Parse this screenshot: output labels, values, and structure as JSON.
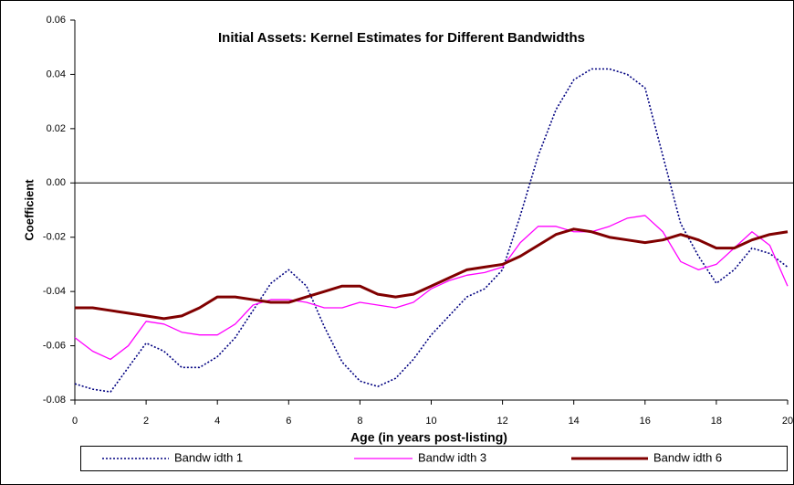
{
  "chart_data": {
    "type": "line",
    "title": "Initial Assets: Kernel Estimates for Different Bandwidths",
    "x_label": "Age (in years post-listing)",
    "y_label": "Coefficient",
    "x": [
      0,
      0.5,
      1,
      1.5,
      2,
      2.5,
      3,
      3.5,
      4,
      4.5,
      5,
      5.5,
      6,
      6.5,
      7,
      7.5,
      8,
      8.5,
      9,
      9.5,
      10,
      10.5,
      11,
      11.5,
      12,
      12.5,
      13,
      13.5,
      14,
      14.5,
      15,
      15.5,
      16,
      16.5,
      17,
      17.5,
      18,
      18.5,
      19,
      19.5,
      20
    ],
    "series": [
      {
        "name": "Bandw idth 1",
        "color": "#000080",
        "style": "dotted",
        "values": [
          -0.074,
          -0.076,
          -0.077,
          -0.068,
          -0.059,
          -0.062,
          -0.068,
          -0.068,
          -0.064,
          -0.057,
          -0.047,
          -0.037,
          -0.032,
          -0.038,
          -0.053,
          -0.066,
          -0.073,
          -0.075,
          -0.072,
          -0.065,
          -0.056,
          -0.049,
          -0.042,
          -0.039,
          -0.032,
          -0.012,
          0.01,
          0.027,
          0.038,
          0.042,
          0.042,
          0.04,
          0.035,
          0.01,
          -0.015,
          -0.027,
          -0.037,
          -0.032,
          -0.024,
          -0.026,
          -0.031
        ]
      },
      {
        "name": "Bandw idth 3",
        "color": "#ff00ff",
        "style": "solid",
        "values": [
          -0.057,
          -0.062,
          -0.065,
          -0.06,
          -0.051,
          -0.052,
          -0.055,
          -0.056,
          -0.056,
          -0.052,
          -0.045,
          -0.043,
          -0.043,
          -0.044,
          -0.046,
          -0.046,
          -0.044,
          -0.045,
          -0.046,
          -0.044,
          -0.039,
          -0.036,
          -0.034,
          -0.033,
          -0.031,
          -0.022,
          -0.016,
          -0.016,
          -0.018,
          -0.018,
          -0.016,
          -0.013,
          -0.012,
          -0.018,
          -0.029,
          -0.032,
          -0.03,
          -0.024,
          -0.018,
          -0.023,
          -0.038
        ]
      },
      {
        "name": "Bandw idth 6",
        "color": "#800000",
        "style": "solid",
        "values": [
          -0.046,
          -0.046,
          -0.047,
          -0.048,
          -0.049,
          -0.05,
          -0.049,
          -0.046,
          -0.042,
          -0.042,
          -0.043,
          -0.044,
          -0.044,
          -0.042,
          -0.04,
          -0.038,
          -0.038,
          -0.041,
          -0.042,
          -0.041,
          -0.038,
          -0.035,
          -0.032,
          -0.031,
          -0.03,
          -0.027,
          -0.023,
          -0.019,
          -0.017,
          -0.018,
          -0.02,
          -0.021,
          -0.022,
          -0.021,
          -0.019,
          -0.021,
          -0.024,
          -0.024,
          -0.021,
          -0.019,
          -0.018
        ]
      }
    ],
    "xlim": [
      0,
      20
    ],
    "xticks": [
      0,
      2,
      4,
      6,
      8,
      10,
      12,
      14,
      16,
      18,
      20
    ],
    "ylim": [
      -0.08,
      0.06
    ],
    "yticks": [
      0.06,
      0.04,
      0.02,
      {
        "value": 0,
        "label": "0.00"
      },
      -0.02,
      -0.04,
      -0.06,
      -0.08
    ],
    "legend": "bottom"
  }
}
